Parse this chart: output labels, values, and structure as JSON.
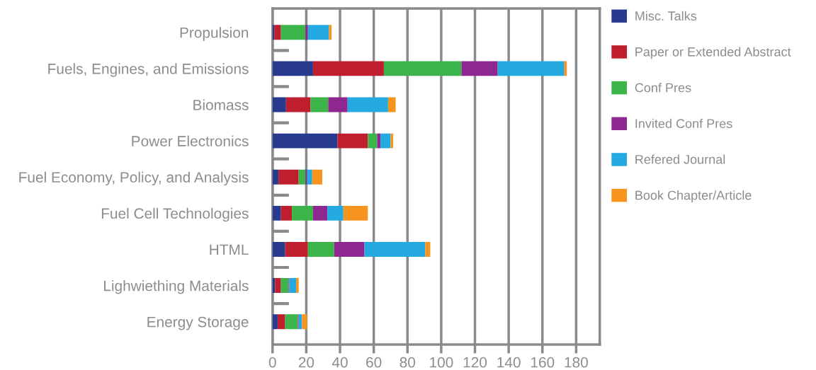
{
  "chart_data": {
    "type": "bar",
    "orientation": "horizontal",
    "stacked": true,
    "categories": [
      "Propulsion",
      "Fuels, Engines, and Emissions",
      "Biomass",
      "Power Electronics",
      "Fuel Economy, Policy, and Analysis",
      "Fuel Cell Technologies",
      "HTML",
      "Lighwiething Materials",
      "Energy Storage"
    ],
    "series": [
      {
        "name": "Misc. Talks",
        "color": "#283a8f",
        "values": [
          1,
          24,
          8,
          38.5,
          3.5,
          5,
          7.5,
          1.5,
          3
        ]
      },
      {
        "name": "Paper or Extended Abstract",
        "color": "#be1e2d",
        "values": [
          4,
          42,
          14.5,
          18,
          12,
          6.5,
          13.5,
          3.5,
          4.5
        ]
      },
      {
        "name": "Conf Pres",
        "color": "#3bb44a",
        "values": [
          14.5,
          46,
          10.5,
          5.5,
          4,
          12.5,
          15.5,
          4.5,
          7.5
        ]
      },
      {
        "name": "Invited Conf Pres",
        "color": "#8e278f",
        "values": [
          1.5,
          21.5,
          11.5,
          2,
          1,
          8.5,
          18,
          0.5,
          0.5
        ]
      },
      {
        "name": "Refered Journal",
        "color": "#24a9e1",
        "values": [
          12.5,
          39.5,
          24,
          6,
          3,
          9.5,
          36,
          4,
          2
        ]
      },
      {
        "name": "Book Chapter/Article",
        "color": "#f7941d",
        "values": [
          1.5,
          1.5,
          4.5,
          1.5,
          6,
          14.5,
          3,
          1.5,
          3
        ]
      }
    ],
    "xlim": [
      0,
      194
    ],
    "xticks": [
      0,
      20,
      40,
      60,
      80,
      100,
      120,
      140,
      160,
      180
    ],
    "grid": "x",
    "legend": "right"
  }
}
